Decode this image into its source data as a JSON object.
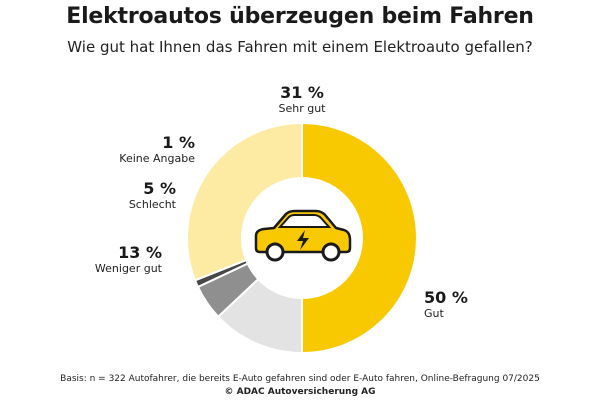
{
  "header": {
    "title": "Elektroautos überzeugen beim Fahren",
    "subtitle": "Wie gut hat Ihnen das Fahren mit einem Elektroauto gefallen?"
  },
  "chart_data": {
    "type": "pie",
    "donut": true,
    "unit": "%",
    "slices": [
      {
        "label": "Gut",
        "value": 50,
        "value_label": "50 %",
        "color": "#f8c800"
      },
      {
        "label": "Weniger gut",
        "value": 13,
        "value_label": "13 %",
        "color": "#e3e3e3"
      },
      {
        "label": "Schlecht",
        "value": 5,
        "value_label": "5 %",
        "color": "#8f8f8f"
      },
      {
        "label": "Keine Angabe",
        "value": 1,
        "value_label": "1 %",
        "color": "#474747"
      },
      {
        "label": "Sehr gut",
        "value": 31,
        "value_label": "31 %",
        "color": "#fdeaa3"
      }
    ],
    "center_icon": "electric-car-icon",
    "icon_color": "#f8c800"
  },
  "footer": {
    "basis": "Basis: n = 322 Autofahrer, die bereits E-Auto gefahren sind oder E-Auto fahren, Online-Befragung 07/2025",
    "copyright": "© ADAC Autoversicherung AG"
  }
}
